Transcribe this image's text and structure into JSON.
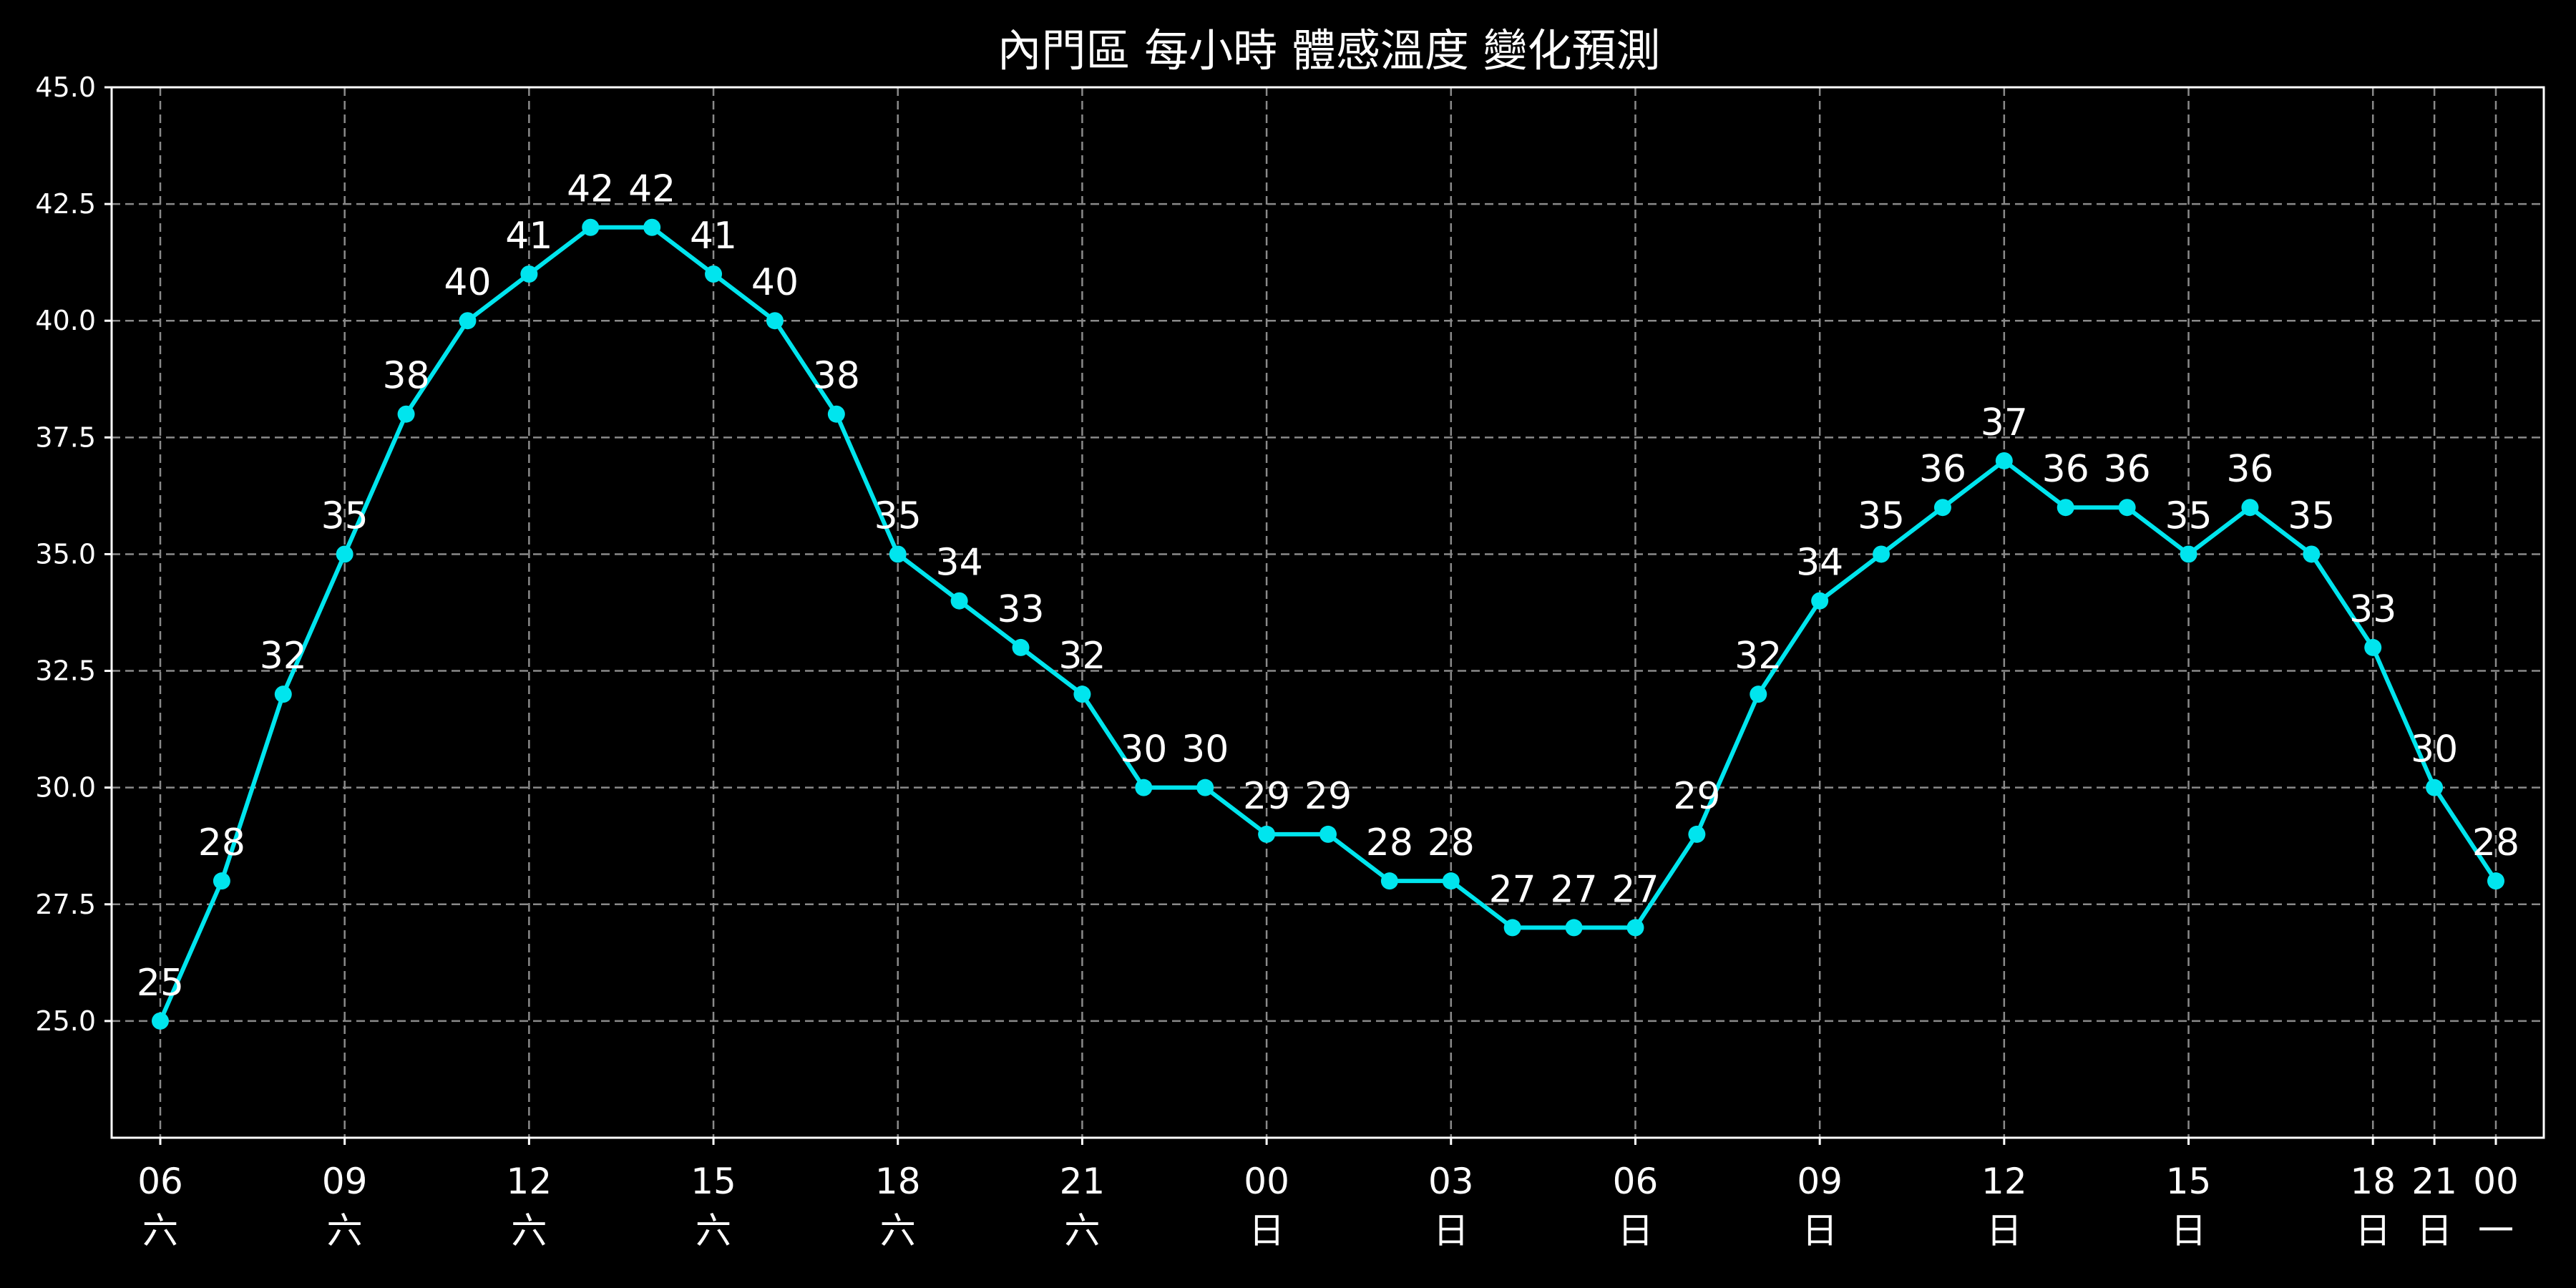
{
  "chart_data": {
    "type": "line",
    "title": "內門區 每小時 體感溫度 變化預測",
    "xlabel": "",
    "ylabel": "",
    "ylim": [
      22.5,
      45.0
    ],
    "yticks": [
      "25.0",
      "27.5",
      "30.0",
      "32.5",
      "35.0",
      "37.5",
      "40.0",
      "42.5",
      "45.0"
    ],
    "grid": true,
    "line_color": "#00e5ee",
    "x": [
      "06",
      "07",
      "08",
      "09",
      "10",
      "11",
      "12",
      "13",
      "14",
      "15",
      "16",
      "17",
      "18",
      "19",
      "20",
      "21",
      "22",
      "23",
      "00",
      "01",
      "02",
      "03",
      "04",
      "05",
      "06",
      "07",
      "08",
      "09",
      "10",
      "11",
      "12",
      "13",
      "14",
      "15",
      "16",
      "17",
      "18",
      "21",
      "00"
    ],
    "values": [
      25,
      28,
      32,
      35,
      38,
      40,
      41,
      42,
      42,
      41,
      40,
      38,
      35,
      34,
      33,
      32,
      30,
      30,
      29,
      29,
      28,
      28,
      27,
      27,
      27,
      29,
      32,
      34,
      35,
      36,
      37,
      36,
      36,
      35,
      36,
      35,
      33,
      30,
      28
    ],
    "xticks": [
      {
        "i": 0,
        "time": "06",
        "day": "六"
      },
      {
        "i": 3,
        "time": "09",
        "day": "六"
      },
      {
        "i": 6,
        "time": "12",
        "day": "六"
      },
      {
        "i": 9,
        "time": "15",
        "day": "六"
      },
      {
        "i": 12,
        "time": "18",
        "day": "六"
      },
      {
        "i": 15,
        "time": "21",
        "day": "六"
      },
      {
        "i": 18,
        "time": "00",
        "day": "日"
      },
      {
        "i": 21,
        "time": "03",
        "day": "日"
      },
      {
        "i": 24,
        "time": "06",
        "day": "日"
      },
      {
        "i": 27,
        "time": "09",
        "day": "日"
      },
      {
        "i": 30,
        "time": "12",
        "day": "日"
      },
      {
        "i": 33,
        "time": "15",
        "day": "日"
      },
      {
        "i": 36,
        "time": "18",
        "day": "日"
      },
      {
        "i": 37,
        "time": "21",
        "day": "日"
      },
      {
        "i": 38,
        "time": "00",
        "day": "一"
      }
    ]
  }
}
